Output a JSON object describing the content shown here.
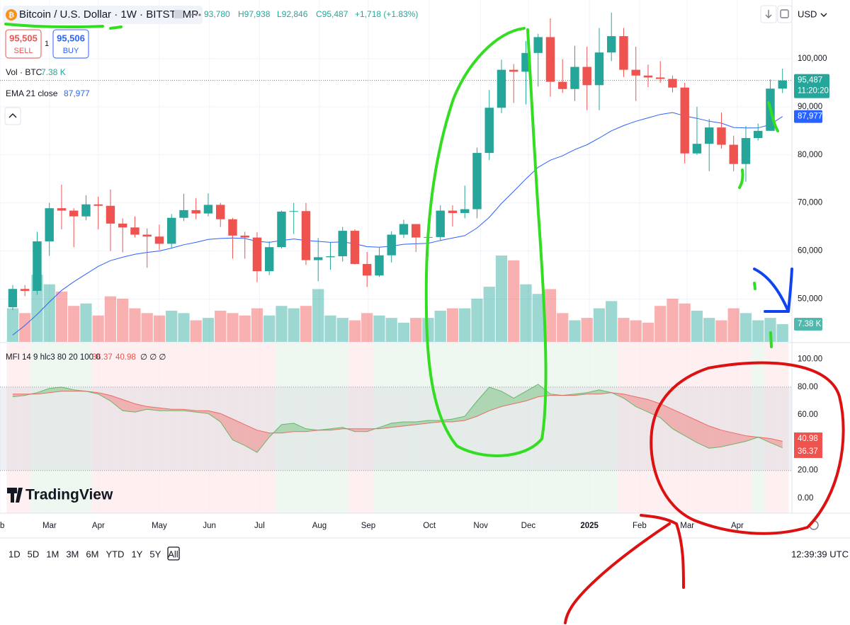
{
  "header": {
    "title": "Bitcoin / U.S. Dollar · 1W · BITSTAMP",
    "open": "93,780",
    "high": "H97,938",
    "low": "L92,846",
    "close": "C95,487",
    "change": "+1,718 (+1.83%)",
    "currency": "USD",
    "sell_price": "95,505",
    "sell": "SELL",
    "quantity": "1",
    "buy_price": "95,506",
    "buy": "BUY",
    "volume_legend": "Vol · BTC",
    "ema_legend": "EMA 21 close",
    "mfi_legend": "MFI 14 9 hlc3 80 20 100 0",
    "mfi_flags": "∅ ∅ ∅",
    "logo": "TradingView",
    "ranges": [
      "1D",
      "5D",
      "1M",
      "3M",
      "6M",
      "YTD",
      "1Y",
      "5Y",
      "All"
    ],
    "clock": "12:39:39 UTC"
  },
  "chart_data": [
    {
      "type": "candlestick",
      "open": [
        48300,
        52100,
        51700,
        62000,
        68900,
        68400,
        67200,
        69700,
        69400,
        65700,
        64900,
        63400,
        63000,
        61500,
        66900,
        68500,
        67800,
        69600,
        66600,
        63200,
        62800,
        55800,
        60800,
        68200,
        68300,
        58100,
        58700,
        58900,
        64200,
        57300,
        54900,
        59100,
        63400,
        65600,
        62800,
        62900,
        68400,
        67900,
        68700,
        80400,
        89800,
        97700,
        97300,
        101200,
        104500,
        95200,
        93700,
        98300,
        94500,
        101300,
        104700,
        97700,
        96500,
        96100,
        95800,
        94000,
        80300,
        82300,
        85700,
        82100,
        78100,
        83500,
        85000,
        93780
      ],
      "high": [
        52900,
        52900,
        64000,
        70000,
        73800,
        68900,
        71600,
        71300,
        72800,
        66800,
        67200,
        64700,
        65500,
        67700,
        71900,
        71000,
        72000,
        70000,
        66900,
        64000,
        63900,
        62000,
        68400,
        70000,
        70000,
        62700,
        61800,
        65000,
        64500,
        59800,
        60700,
        64100,
        66500,
        65600,
        64500,
        69500,
        69500,
        73600,
        81500,
        93500,
        99800,
        98900,
        103700,
        105200,
        108400,
        99900,
        102700,
        102500,
        106400,
        109600,
        106400,
        102500,
        98800,
        99500,
        96500,
        95000,
        90000,
        87500,
        88800,
        84000,
        86000,
        86500,
        95700,
        97938
      ],
      "low": [
        47700,
        50600,
        50900,
        59000,
        64500,
        60800,
        66400,
        64500,
        60000,
        59700,
        62800,
        56500,
        60200,
        60700,
        66200,
        66600,
        67200,
        65000,
        58400,
        58400,
        53500,
        55000,
        60500,
        63500,
        57100,
        53700,
        56100,
        57800,
        57200,
        52500,
        54600,
        57600,
        62700,
        59800,
        58900,
        62100,
        65100,
        66800,
        66800,
        78900,
        88700,
        90800,
        90500,
        94200,
        92100,
        92900,
        91200,
        89300,
        89300,
        99500,
        96200,
        91200,
        94100,
        95000,
        93000,
        78200,
        80000,
        76600,
        81300,
        76600,
        74400,
        83000,
        85000,
        92846
      ],
      "close": [
        52100,
        51700,
        62000,
        68900,
        68400,
        67200,
        69700,
        69400,
        65700,
        64900,
        63400,
        63000,
        61500,
        66900,
        68500,
        67800,
        69600,
        66600,
        63200,
        62800,
        55800,
        60800,
        68200,
        68300,
        58100,
        58700,
        58900,
        64200,
        57300,
        54900,
        59100,
        63400,
        65600,
        62800,
        62900,
        68400,
        67900,
        68700,
        80400,
        89800,
        97700,
        97300,
        101200,
        104500,
        95200,
        93700,
        98300,
        94500,
        101300,
        104700,
        97700,
        96500,
        96100,
        95800,
        94000,
        80300,
        82300,
        85700,
        82100,
        78100,
        83500,
        85000,
        93780,
        95487
      ],
      "up_color": "#26a69a",
      "down_color": "#ef5350",
      "volume": [
        14,
        12,
        28,
        24,
        21,
        15,
        16,
        11,
        19,
        18,
        14,
        12,
        11,
        13,
        12,
        9,
        10,
        13,
        12,
        11,
        14,
        11,
        15,
        14,
        15,
        22,
        11,
        10,
        9,
        12,
        11,
        10,
        8,
        10,
        10,
        13,
        14,
        14,
        18,
        23,
        36,
        34,
        24,
        20,
        22,
        12,
        9,
        10,
        14,
        17,
        10,
        9,
        8,
        15,
        18,
        16,
        13,
        10,
        9,
        14,
        12,
        9,
        10,
        7.38
      ],
      "ema": [
        42500,
        44500,
        46800,
        49400,
        51800,
        53600,
        55200,
        56800,
        58000,
        58700,
        59300,
        59700,
        60000,
        60600,
        61300,
        61800,
        62400,
        62600,
        62700,
        62600,
        62000,
        61800,
        62200,
        62500,
        62200,
        62000,
        61800,
        61900,
        61500,
        60900,
        60800,
        61000,
        61400,
        61500,
        61600,
        62200,
        62700,
        63200,
        64800,
        67000,
        69900,
        72400,
        75000,
        77400,
        78900,
        79800,
        81100,
        82100,
        83500,
        85000,
        86100,
        87000,
        87700,
        88400,
        88800,
        88100,
        87600,
        87000,
        86600,
        85700,
        85600,
        85600,
        86300,
        87977
      ],
      "ema_color": "#2962ff",
      "last_price_label": "95,487",
      "countdown": "11:20:20",
      "ema_label": "87,977",
      "volume_label": "7.38 K",
      "ylim": [
        41090,
        112220
      ],
      "yticks": [
        {
          "value": 50000,
          "label": "50,000"
        },
        {
          "value": 60000,
          "label": "60,000"
        },
        {
          "value": 70000,
          "label": "70,000"
        },
        {
          "value": 80000,
          "label": "80,000"
        },
        {
          "value": 90000,
          "label": "90,000"
        },
        {
          "value": 100000,
          "label": "100,000"
        }
      ],
      "xlim": [
        -1.04,
        63.77
      ],
      "xticks": [
        {
          "value": -1.04,
          "label": "eb"
        },
        {
          "value": 3.01,
          "label": "Mar"
        },
        {
          "value": 7.01,
          "label": "Apr"
        },
        {
          "value": 12.0,
          "label": "May"
        },
        {
          "value": 16.1,
          "label": "Jun"
        },
        {
          "value": 20.2,
          "label": "Jul"
        },
        {
          "value": 25.1,
          "label": "Aug"
        },
        {
          "value": 29.1,
          "label": "Sep"
        },
        {
          "value": 34.1,
          "label": "Oct"
        },
        {
          "value": 38.3,
          "label": "Nov"
        },
        {
          "value": 42.2,
          "label": "Dec"
        },
        {
          "value": 47.2,
          "label": "2025"
        },
        {
          "value": 51.3,
          "label": "Feb"
        },
        {
          "value": 55.2,
          "label": "Mar"
        },
        {
          "value": 59.3,
          "label": "Apr"
        }
      ],
      "grid": true
    },
    {
      "type": "line",
      "series": [
        {
          "color": "#4caf50",
          "values": [
            73,
            74,
            76,
            79,
            80,
            78,
            77,
            75,
            70,
            63,
            62,
            64,
            63,
            63,
            63,
            62,
            61,
            55,
            42,
            38,
            33,
            44,
            53,
            54,
            50,
            49,
            50,
            51,
            48,
            48,
            51,
            54,
            55,
            55,
            56,
            56,
            57,
            59,
            70,
            80,
            77,
            72,
            77,
            82,
            75,
            74,
            75,
            76,
            78,
            76,
            72,
            66,
            62,
            58,
            50,
            45,
            40,
            36,
            37,
            39,
            41,
            44,
            40,
            36.37
          ],
          "value_label": "36.37"
        },
        {
          "color": "#ef5350",
          "values": [
            75,
            75,
            75,
            76,
            77,
            77,
            77,
            76,
            74,
            71,
            68,
            66,
            65,
            64,
            64,
            63,
            63,
            61,
            57,
            53,
            49,
            47,
            47,
            48,
            48,
            49,
            49,
            50,
            50,
            50,
            50,
            51,
            52,
            53,
            54,
            55,
            55,
            56,
            59,
            63,
            66,
            68,
            70,
            73,
            74,
            74,
            74,
            75,
            75,
            76,
            75,
            73,
            71,
            68,
            64,
            60,
            56,
            52,
            49,
            47,
            45,
            44,
            43,
            40.98
          ],
          "value_label": "40.98"
        }
      ],
      "ylim": [
        -10.7,
        111.5
      ],
      "yticks": [
        {
          "value": 0,
          "label": "0.00"
        },
        {
          "value": 20,
          "label": "20.00"
        },
        {
          "value": 60,
          "label": "60.00"
        },
        {
          "value": 80,
          "label": "80.00"
        },
        {
          "value": 100,
          "label": "100.00"
        }
      ],
      "bands": [
        20,
        80
      ]
    }
  ]
}
